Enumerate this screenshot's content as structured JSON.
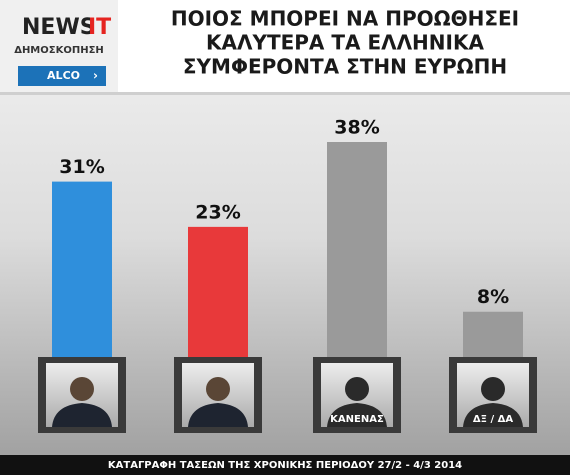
{
  "logo": {
    "brand": "NEWS",
    "brand_suffix": "IT",
    "subtitle": "ΔΗΜΟΣΚΟΠΗΣΗ",
    "source": "ALCO"
  },
  "chart_data": {
    "type": "bar",
    "title": [
      "ΠΟΙΟΣ ΜΠΟΡΕΙ ΝΑ ΠΡΟΩΘΗΣΕΙ",
      "ΚΑΛΥΤΕΡΑ ΤΑ ΕΛΛΗΝΙΚΑ",
      "ΣΥΜΦΕΡΟΝΤΑ ΣΤΗΝ ΕΥΡΩΠΗ"
    ],
    "categories": [
      null,
      null,
      "ΚΑΝΕΝΑΣ",
      "ΔΞ / ΔΑ"
    ],
    "values": [
      31,
      23,
      38,
      8
    ],
    "value_labels": [
      "31%",
      "23%",
      "38%",
      "8%"
    ],
    "colors": [
      "#2f8fdc",
      "#e8393a",
      "#9a9a9a",
      "#9a9a9a"
    ]
  },
  "footer": "ΚΑΤΑΓΡΑΦΗ ΤΑΣΕΩΝ ΤΗΣ ΧΡΟΝΙΚΗΣ ΠΕΡΙΟΔΟΥ 27/2 - 4/3 2014"
}
